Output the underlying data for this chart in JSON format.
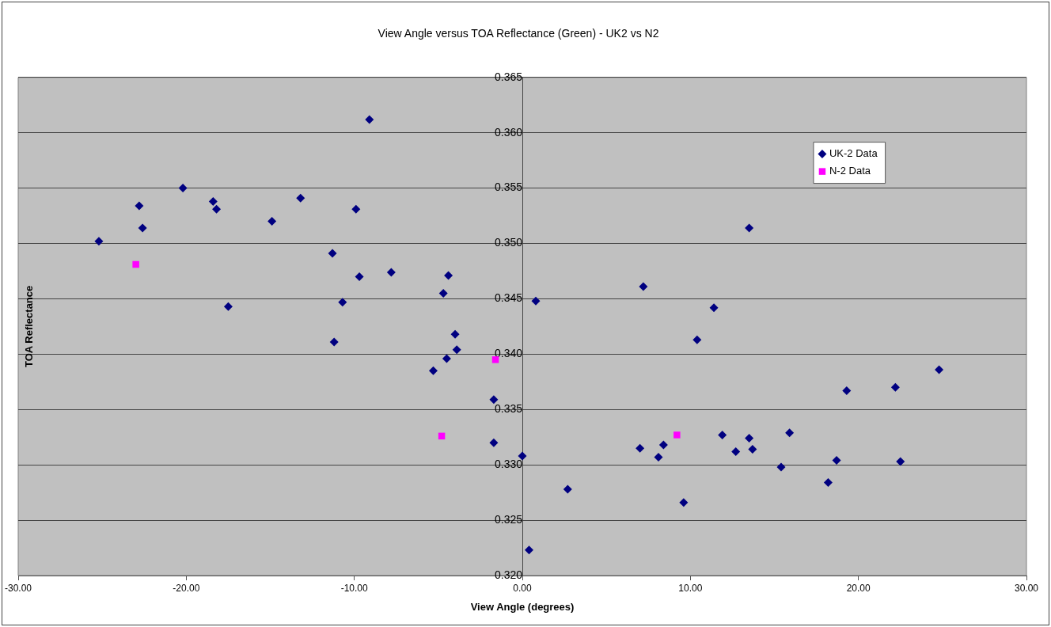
{
  "chart_data": {
    "type": "scatter",
    "title": "View Angle versus TOA Reflectance (Green) - UK2 vs N2",
    "xlabel": "View Angle (degrees)",
    "ylabel": "TOA Reflectance",
    "series": [
      {
        "name": "UK-2 Data",
        "color": "#000080",
        "marker": "diamond",
        "x": [
          -25.2,
          -22.8,
          -22.6,
          -20.2,
          -18.4,
          -18.2,
          -17.5,
          -14.9,
          -13.2,
          -11.3,
          -11.2,
          -10.7,
          -9.9,
          -9.7,
          -9.1,
          -7.8,
          -5.3,
          -4.7,
          -4.5,
          -4.4,
          -4.0,
          -3.9,
          -1.7,
          -1.7,
          0.0,
          0.4,
          0.8,
          2.7,
          7.0,
          7.2,
          8.1,
          8.4,
          9.6,
          10.4,
          11.4,
          11.9,
          12.7,
          13.5,
          13.5,
          13.7,
          15.4,
          15.9,
          18.2,
          18.7,
          19.3,
          22.2,
          22.5,
          24.8
        ],
        "values": [
          0.3502,
          0.3534,
          0.3514,
          0.355,
          0.3538,
          0.3531,
          0.3443,
          0.352,
          0.3541,
          0.3491,
          0.3411,
          0.3447,
          0.3531,
          0.347,
          0.3612,
          0.3474,
          0.3385,
          0.3455,
          0.3396,
          0.3471,
          0.3418,
          0.3404,
          0.3359,
          0.332,
          0.3308,
          0.3223,
          0.3448,
          0.3278,
          0.3315,
          0.3461,
          0.3307,
          0.3318,
          0.3266,
          0.3413,
          0.3442,
          0.3327,
          0.3312,
          0.3514,
          0.3324,
          0.3314,
          0.3298,
          0.3329,
          0.3284,
          0.3304,
          0.3367,
          0.337,
          0.3303,
          0.3386
        ]
      },
      {
        "name": "N-2 Data",
        "color": "#ff00ff",
        "marker": "square",
        "x": [
          -23.0,
          -4.8,
          -1.6,
          9.2
        ],
        "values": [
          0.3481,
          0.3326,
          0.3395,
          0.3327
        ]
      }
    ],
    "xlim": [
      -30,
      30
    ],
    "xticks": [
      {
        "value": -30,
        "label": "-30.00"
      },
      {
        "value": -20,
        "label": "-20.00"
      },
      {
        "value": -10,
        "label": "-10.00"
      },
      {
        "value": 0,
        "label": "0.00"
      },
      {
        "value": 10,
        "label": "10.00"
      },
      {
        "value": 20,
        "label": "20.00"
      },
      {
        "value": 30,
        "label": "30.00"
      }
    ],
    "ylim": [
      0.32,
      0.365
    ],
    "yticks": [
      {
        "value": 0.32,
        "label": "0.320"
      },
      {
        "value": 0.325,
        "label": "0.325"
      },
      {
        "value": 0.33,
        "label": "0.330"
      },
      {
        "value": 0.335,
        "label": "0.335"
      },
      {
        "value": 0.34,
        "label": "0.340"
      },
      {
        "value": 0.345,
        "label": "0.345"
      },
      {
        "value": 0.35,
        "label": "0.350"
      },
      {
        "value": 0.355,
        "label": "0.355"
      },
      {
        "value": 0.36,
        "label": "0.360"
      },
      {
        "value": 0.365,
        "label": "0.365"
      }
    ],
    "grid": "y",
    "legend": "top right"
  }
}
